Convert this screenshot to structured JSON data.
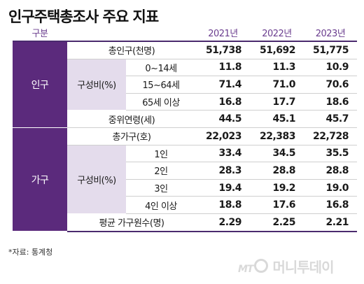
{
  "title": "인구주택총조사 주요 지표",
  "header": {
    "gubun": "구분",
    "years": [
      "2021년",
      "2022년",
      "2023년"
    ]
  },
  "groups": {
    "population": "인구",
    "household": "가구"
  },
  "rows": {
    "total_pop": {
      "label": "총인구(천명)",
      "values": [
        "51,738",
        "51,692",
        "51,775"
      ]
    },
    "pop_ratio": {
      "label": "구성비(%)"
    },
    "age_0_14": {
      "label": "0~14세",
      "values": [
        "11.8",
        "11.3",
        "10.9"
      ]
    },
    "age_15_64": {
      "label": "15~64세",
      "values": [
        "71.4",
        "71.0",
        "70.6"
      ]
    },
    "age_65": {
      "label": "65세 이상",
      "values": [
        "16.8",
        "17.7",
        "18.6"
      ]
    },
    "median_age": {
      "label": "중위연령(세)",
      "values": [
        "44.5",
        "45.1",
        "45.7"
      ]
    },
    "total_hh": {
      "label": "총가구(호)",
      "values": [
        "22,023",
        "22,383",
        "22,728"
      ]
    },
    "hh_ratio": {
      "label": "구성비(%)"
    },
    "hh_1": {
      "label": "1인",
      "values": [
        "33.4",
        "34.5",
        "35.5"
      ]
    },
    "hh_2": {
      "label": "2인",
      "values": [
        "28.3",
        "28.8",
        "28.8"
      ]
    },
    "hh_3": {
      "label": "3인",
      "values": [
        "19.4",
        "19.2",
        "19.0"
      ]
    },
    "hh_4": {
      "label": "4인 이상",
      "values": [
        "18.8",
        "17.6",
        "16.8"
      ]
    },
    "avg_hh": {
      "label": "평균 가구원수(명)",
      "values": [
        "2.29",
        "2.25",
        "2.21"
      ]
    }
  },
  "source": "*자료: 통계청",
  "watermark": {
    "mt": "MT",
    "name": "머니투데이"
  },
  "colors": {
    "accent": "#5b2a7c",
    "sub_bg": "#e4dcec",
    "header_text": "#6b3e8f"
  }
}
